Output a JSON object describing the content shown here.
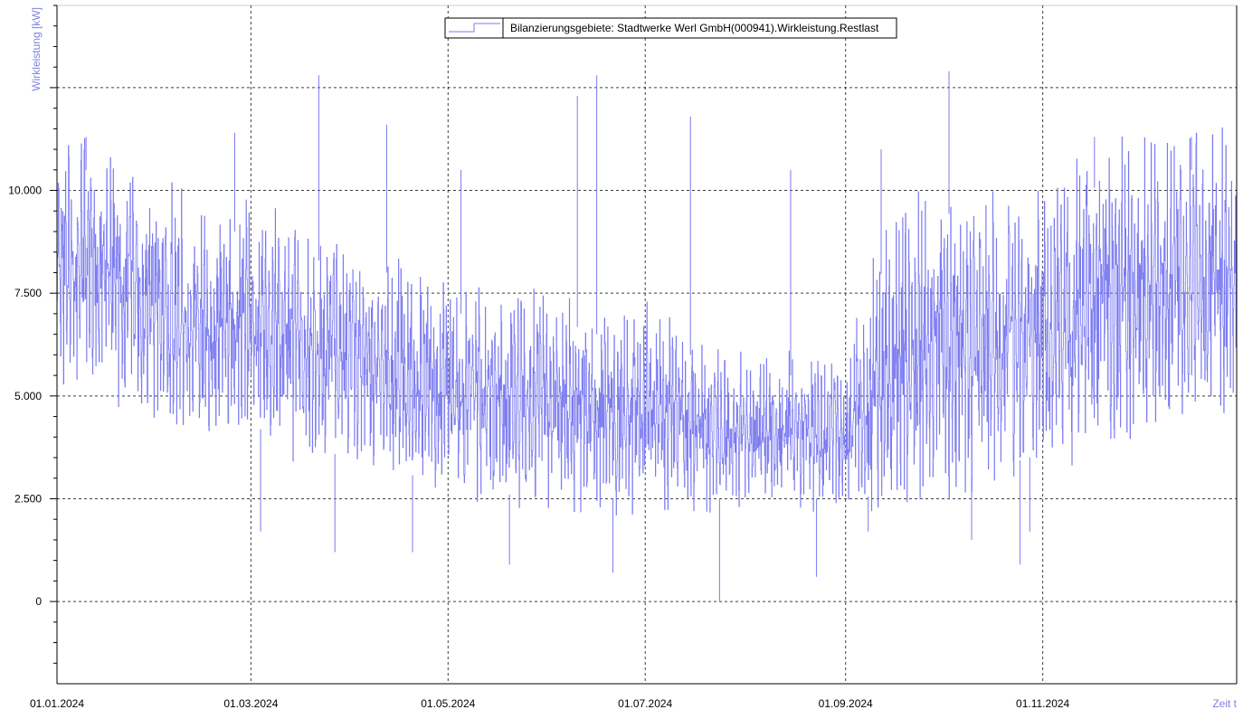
{
  "chart_data": {
    "type": "line",
    "ylabel": "Wirkleistung [kW]",
    "xlabel": "Zeit t",
    "x_range": [
      "2024-01-01",
      "2024-12-31"
    ],
    "ylim": [
      -2000,
      14500
    ],
    "y_ticks": [
      {
        "value": 0,
        "label": "0"
      },
      {
        "value": 2500,
        "label": "2.500"
      },
      {
        "value": 5000,
        "label": "5.000"
      },
      {
        "value": 7500,
        "label": "7.500"
      },
      {
        "value": 10000,
        "label": "10.000"
      },
      {
        "value": 12500,
        "label": ""
      }
    ],
    "x_ticks": [
      {
        "date": "2024-01-01",
        "label": "01.01.2024"
      },
      {
        "date": "2024-03-01",
        "label": "01.03.2024"
      },
      {
        "date": "2024-05-01",
        "label": "01.05.2024"
      },
      {
        "date": "2024-07-01",
        "label": "01.07.2024"
      },
      {
        "date": "2024-09-01",
        "label": "01.09.2024"
      },
      {
        "date": "2024-11-01",
        "label": "01.11.2024"
      }
    ],
    "grid": true,
    "legend_position": "top-center",
    "series": [
      {
        "name": "Bilanzierungsgebiete: Stadtwerke Werl GmbH(000941).Wirkleistung.Restlast",
        "color": "#7b7bf0",
        "style": "step",
        "daily_envelope": {
          "dates": [
            "2024-01-01",
            "2024-01-15",
            "2024-02-01",
            "2024-02-15",
            "2024-03-01",
            "2024-03-15",
            "2024-04-01",
            "2024-04-15",
            "2024-05-01",
            "2024-05-15",
            "2024-06-01",
            "2024-06-15",
            "2024-07-01",
            "2024-07-15",
            "2024-08-01",
            "2024-08-15",
            "2024-09-01",
            "2024-09-15",
            "2024-10-01",
            "2024-10-15",
            "2024-11-01",
            "2024-11-15",
            "2024-12-01",
            "2024-12-15",
            "2024-12-31"
          ],
          "min": [
            5500,
            5500,
            4500,
            4300,
            4300,
            3800,
            3500,
            3200,
            2800,
            2600,
            2600,
            2500,
            2500,
            2500,
            2500,
            2500,
            2500,
            2600,
            2800,
            3200,
            3600,
            4000,
            4300,
            4700,
            5000
          ],
          "max": [
            10500,
            10500,
            9500,
            9000,
            9000,
            8500,
            8000,
            8000,
            7000,
            7000,
            7000,
            6500,
            6500,
            6000,
            5500,
            5500,
            6000,
            8500,
            9500,
            9000,
            9000,
            10000,
            10500,
            10500,
            10500
          ]
        },
        "spikes_up": [
          {
            "date": "2024-01-10",
            "value": 11300
          },
          {
            "date": "2024-02-25",
            "value": 11400
          },
          {
            "date": "2024-03-22",
            "value": 12800
          },
          {
            "date": "2024-04-12",
            "value": 11600
          },
          {
            "date": "2024-05-05",
            "value": 10500
          },
          {
            "date": "2024-06-10",
            "value": 12300
          },
          {
            "date": "2024-06-16",
            "value": 12800
          },
          {
            "date": "2024-07-15",
            "value": 11800
          },
          {
            "date": "2024-08-15",
            "value": 10500
          },
          {
            "date": "2024-09-12",
            "value": 11000
          },
          {
            "date": "2024-10-03",
            "value": 12900
          },
          {
            "date": "2024-11-17",
            "value": 11300
          },
          {
            "date": "2024-12-17",
            "value": 11300
          },
          {
            "date": "2024-12-31",
            "value": 11800
          }
        ],
        "spikes_down": [
          {
            "date": "2024-03-04",
            "value": 1700
          },
          {
            "date": "2024-03-27",
            "value": 1200
          },
          {
            "date": "2024-04-20",
            "value": 1200
          },
          {
            "date": "2024-05-20",
            "value": 900
          },
          {
            "date": "2024-06-21",
            "value": 700
          },
          {
            "date": "2024-07-24",
            "value": 0
          },
          {
            "date": "2024-08-23",
            "value": 600
          },
          {
            "date": "2024-09-08",
            "value": 1700
          },
          {
            "date": "2024-10-10",
            "value": 1500
          },
          {
            "date": "2024-10-25",
            "value": 900
          },
          {
            "date": "2024-10-28",
            "value": 1700
          }
        ]
      }
    ]
  }
}
